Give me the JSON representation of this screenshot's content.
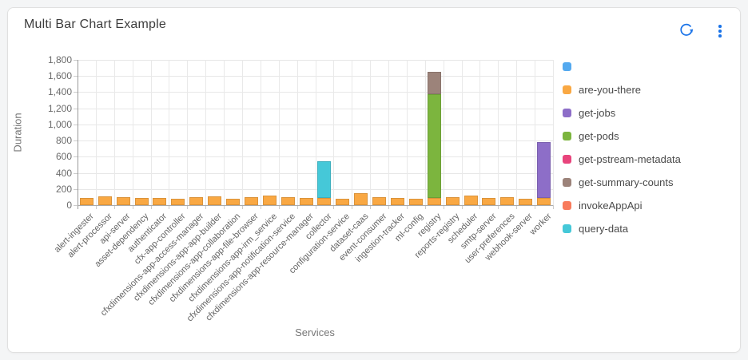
{
  "card": {
    "title": "Multi Bar Chart Example",
    "accent_color": "#1a73e8",
    "icons": {
      "refresh": "circular-arrow",
      "menu": "vertical-three-dots"
    }
  },
  "chart_data": {
    "type": "bar",
    "stacked": true,
    "xlabel": "Services",
    "ylabel": "Duration",
    "ylim": [
      0,
      1800
    ],
    "ytick_step": 200,
    "grid": true,
    "legend_position": "right",
    "categories": [
      "alert-ingester",
      "alert-processor",
      "api-server",
      "asset-dependency",
      "authenticator",
      "cfx-app-controller",
      "cfxdimensions-app-access-manager",
      "cfxdimensions-app-app-builder",
      "cfxdimensions-app-collaboration",
      "cfxdimensions-app-file-browser",
      "cfxdimensions-app-irm_service",
      "cfxdimensions-app-notification-service",
      "cfxdimensions-app-resource-manager",
      "collector",
      "configuration-service",
      "dataset-caas",
      "event-consumer",
      "ingestion-tracker",
      "ml-config",
      "registry",
      "reports-registry",
      "scheduler",
      "smtp-server",
      "user-preferences",
      "webhook-server",
      "worker"
    ],
    "series": [
      {
        "name": "",
        "color": "#54a9ef",
        "values": [
          0,
          0,
          0,
          0,
          0,
          0,
          0,
          0,
          0,
          0,
          0,
          0,
          0,
          0,
          0,
          0,
          0,
          0,
          0,
          0,
          0,
          0,
          0,
          0,
          0,
          0
        ]
      },
      {
        "name": "are-you-there",
        "color": "#f9a843",
        "values": [
          90,
          110,
          100,
          90,
          90,
          75,
          100,
          110,
          75,
          100,
          120,
          95,
          90,
          85,
          80,
          145,
          95,
          85,
          80,
          85,
          95,
          120,
          85,
          100,
          75,
          90
        ]
      },
      {
        "name": "get-jobs",
        "color": "#8d6ec8",
        "values": [
          0,
          0,
          0,
          0,
          0,
          0,
          0,
          0,
          0,
          0,
          0,
          0,
          0,
          0,
          0,
          0,
          0,
          0,
          0,
          0,
          0,
          0,
          0,
          0,
          0,
          690
        ]
      },
      {
        "name": "get-pods",
        "color": "#7cb53e",
        "values": [
          0,
          0,
          0,
          0,
          0,
          0,
          0,
          0,
          0,
          0,
          0,
          0,
          0,
          0,
          0,
          0,
          0,
          0,
          0,
          1285,
          0,
          0,
          0,
          0,
          0,
          0
        ]
      },
      {
        "name": "get-pstream-metadata",
        "color": "#e8447c",
        "values": [
          0,
          0,
          0,
          0,
          0,
          0,
          0,
          0,
          0,
          0,
          0,
          0,
          0,
          0,
          0,
          0,
          0,
          0,
          0,
          0,
          0,
          0,
          0,
          0,
          0,
          0
        ]
      },
      {
        "name": "get-summary-counts",
        "color": "#9c837a",
        "values": [
          0,
          0,
          0,
          0,
          0,
          0,
          0,
          0,
          0,
          0,
          0,
          0,
          0,
          0,
          0,
          0,
          0,
          0,
          0,
          280,
          0,
          0,
          0,
          0,
          0,
          0
        ]
      },
      {
        "name": "invokeAppApi",
        "color": "#f87b5c",
        "values": [
          0,
          0,
          0,
          0,
          0,
          0,
          0,
          0,
          0,
          0,
          0,
          0,
          0,
          0,
          0,
          0,
          0,
          0,
          0,
          0,
          0,
          0,
          0,
          0,
          0,
          0
        ]
      },
      {
        "name": "query-data",
        "color": "#45c8d8",
        "values": [
          0,
          0,
          0,
          0,
          0,
          0,
          0,
          0,
          0,
          0,
          0,
          0,
          0,
          455,
          0,
          0,
          0,
          0,
          0,
          0,
          0,
          0,
          0,
          0,
          0,
          0
        ]
      }
    ]
  }
}
